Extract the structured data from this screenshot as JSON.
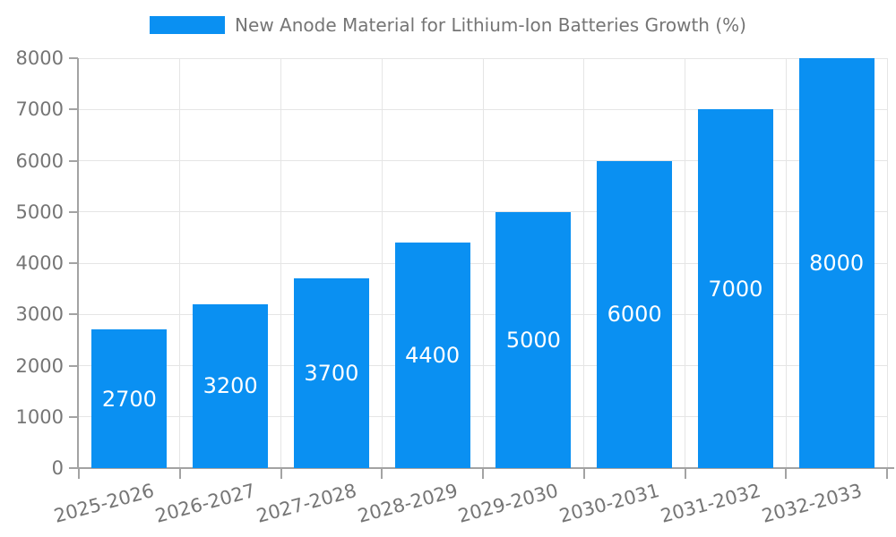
{
  "chart_data": {
    "type": "bar",
    "title": "",
    "series_name": "New Anode Material for Lithium-Ion Batteries Growth (%)",
    "categories": [
      "2025-2026",
      "2026-2027",
      "2027-2028",
      "2028-2029",
      "2029-2030",
      "2030-2031",
      "2031-2032",
      "2032-2033"
    ],
    "values": [
      2700,
      3200,
      3700,
      4400,
      5000,
      6000,
      7000,
      8000
    ],
    "xlabel": "",
    "ylabel": "",
    "ylim": [
      0,
      8000
    ],
    "ytick_step": 1000,
    "yticks": [
      0,
      1000,
      2000,
      3000,
      4000,
      5000,
      6000,
      7000,
      8000
    ],
    "grid": true,
    "legend_position": "top-center",
    "value_labels_inside_bars": true,
    "x_label_rotation_deg": -15,
    "colors": {
      "bar": "#0a90f2",
      "value_label": "#ffffff",
      "axis_text": "#757575",
      "grid_line": "#e5e5e5",
      "axis_line": "#a3a3a3"
    }
  }
}
